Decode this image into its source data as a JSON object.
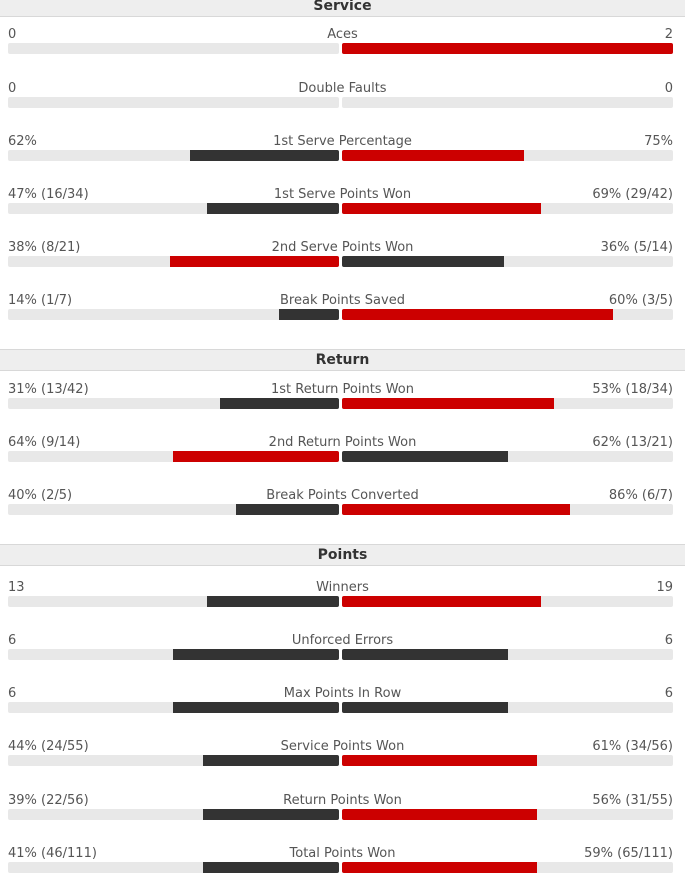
{
  "colors": {
    "leading": "#cc0000",
    "trailing": "#333333",
    "track": "#e8e8e8"
  },
  "sections": [
    {
      "title": "Service",
      "rows": [
        {
          "name": "Aces",
          "left": "0",
          "right": "2",
          "left_fraction": 0.0,
          "right_fraction": 1.0,
          "leader": "right"
        },
        {
          "name": "Double Faults",
          "left": "0",
          "right": "0",
          "left_fraction": 0.0,
          "right_fraction": 0.0,
          "leader": "none"
        },
        {
          "name": "1st Serve Percentage",
          "left": "62%",
          "right": "75%",
          "left_fraction": 0.45,
          "right_fraction": 0.55,
          "leader": "right"
        },
        {
          "name": "1st Serve Points Won",
          "left": "47% (16/34)",
          "right": "69% (29/42)",
          "left_fraction": 0.4,
          "right_fraction": 0.6,
          "leader": "right"
        },
        {
          "name": "2nd Serve Points Won",
          "left": "38% (8/21)",
          "right": "36% (5/14)",
          "left_fraction": 0.51,
          "right_fraction": 0.49,
          "leader": "left"
        },
        {
          "name": "Break Points Saved",
          "left": "14% (1/7)",
          "right": "60% (3/5)",
          "left_fraction": 0.18,
          "right_fraction": 0.82,
          "leader": "right"
        }
      ]
    },
    {
      "title": "Return",
      "rows": [
        {
          "name": "1st Return Points Won",
          "left": "31% (13/42)",
          "right": "53% (18/34)",
          "left_fraction": 0.36,
          "right_fraction": 0.64,
          "leader": "right"
        },
        {
          "name": "2nd Return Points Won",
          "left": "64% (9/14)",
          "right": "62% (13/21)",
          "left_fraction": 0.5,
          "right_fraction": 0.5,
          "leader": "left"
        },
        {
          "name": "Break Points Converted",
          "left": "40% (2/5)",
          "right": "86% (6/7)",
          "left_fraction": 0.31,
          "right_fraction": 0.69,
          "leader": "right"
        }
      ]
    },
    {
      "title": "Points",
      "rows": [
        {
          "name": "Winners",
          "left": "13",
          "right": "19",
          "left_fraction": 0.4,
          "right_fraction": 0.6,
          "leader": "right"
        },
        {
          "name": "Unforced Errors",
          "left": "6",
          "right": "6",
          "left_fraction": 0.5,
          "right_fraction": 0.5,
          "leader": "none"
        },
        {
          "name": "Max Points In Row",
          "left": "6",
          "right": "6",
          "left_fraction": 0.5,
          "right_fraction": 0.5,
          "leader": "none"
        },
        {
          "name": "Service Points Won",
          "left": "44% (24/55)",
          "right": "61% (34/56)",
          "left_fraction": 0.41,
          "right_fraction": 0.59,
          "leader": "right"
        },
        {
          "name": "Return Points Won",
          "left": "39% (22/56)",
          "right": "56% (31/55)",
          "left_fraction": 0.41,
          "right_fraction": 0.59,
          "leader": "right"
        },
        {
          "name": "Total Points Won",
          "left": "41% (46/111)",
          "right": "59% (65/111)",
          "left_fraction": 0.41,
          "right_fraction": 0.59,
          "leader": "right"
        }
      ]
    }
  ]
}
